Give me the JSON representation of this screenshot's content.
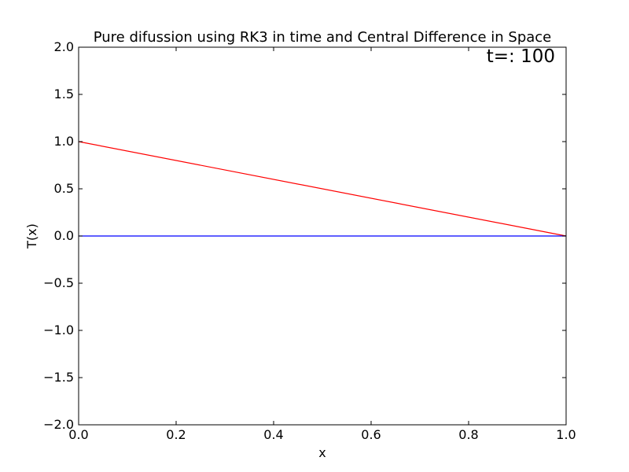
{
  "chart_data": {
    "type": "line",
    "title": "Pure difussion using RK3 in time and Central Difference in Space",
    "xlabel": "x",
    "ylabel": "T(x)",
    "xlim": [
      0.0,
      1.0
    ],
    "ylim": [
      -2.0,
      2.0
    ],
    "x_ticks": [
      "0.0",
      "0.2",
      "0.4",
      "0.6",
      "0.8",
      "1.0"
    ],
    "y_ticks": [
      "−2.0",
      "−1.5",
      "−1.0",
      "−0.5",
      "0.0",
      "0.5",
      "1.0",
      "1.5",
      "2.0"
    ],
    "grid": false,
    "annotation": "t=: 100",
    "series": [
      {
        "color": "#ff0000",
        "x": [
          0.0,
          1.0
        ],
        "y": [
          1.0,
          0.0
        ]
      },
      {
        "color": "#0000ff",
        "x": [
          0.0,
          1.0
        ],
        "y": [
          0.0,
          0.0
        ]
      }
    ]
  }
}
